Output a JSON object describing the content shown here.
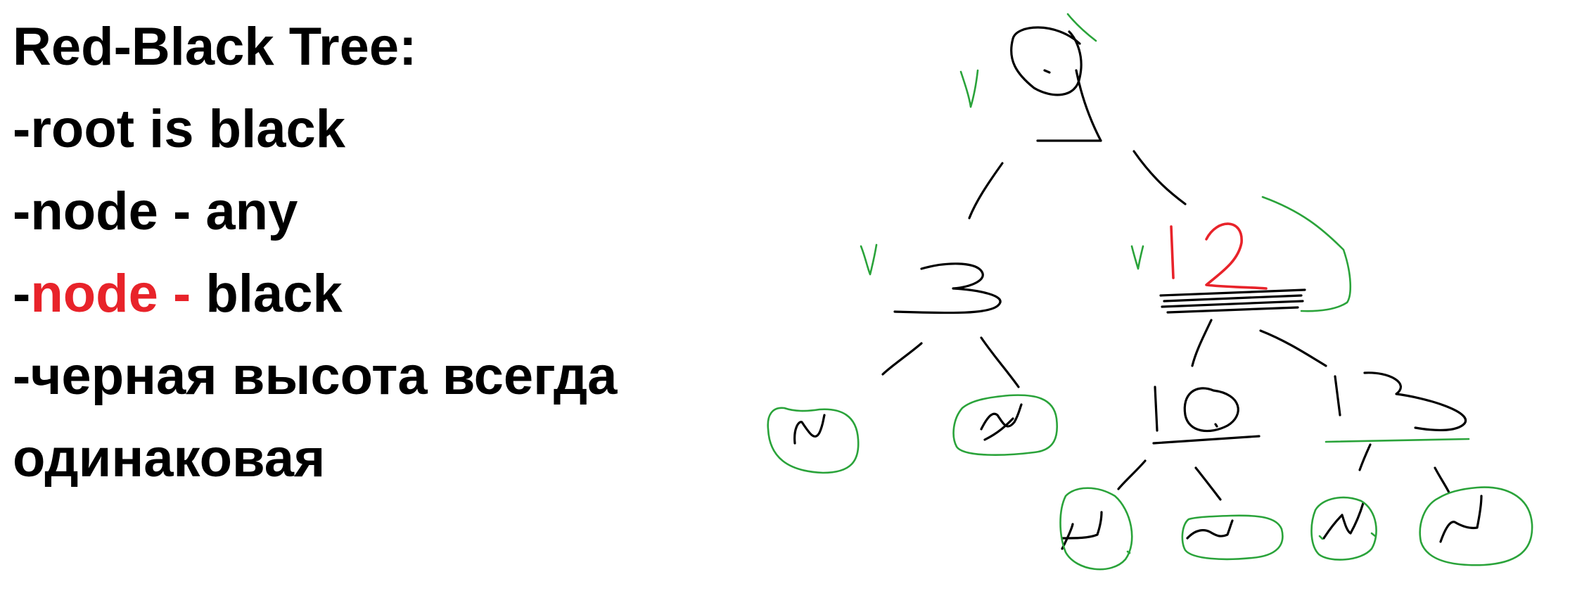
{
  "title": "Red-Black Tree:",
  "rules": [
    {
      "prefix": "-",
      "text": "root is black"
    },
    {
      "prefix": "-",
      "text": "node - any"
    },
    {
      "prefix": "-",
      "red": "node - ",
      "text": "black"
    },
    {
      "prefix": "-",
      "text": "черная высота всегда"
    },
    {
      "prefix": "",
      "text": "одинаковая"
    }
  ],
  "colors": {
    "text": "#000000",
    "highlight": "#e8232a",
    "green_marks": "#2aa33a"
  },
  "tree": {
    "root": {
      "value": "9",
      "color": "black"
    },
    "left": {
      "value": "3",
      "color": "black"
    },
    "right": {
      "value": "12",
      "color": "red"
    },
    "right_left": {
      "value": "10",
      "color": "black"
    },
    "right_right": {
      "value": "13",
      "color": "black"
    },
    "leaf_label": "N"
  }
}
